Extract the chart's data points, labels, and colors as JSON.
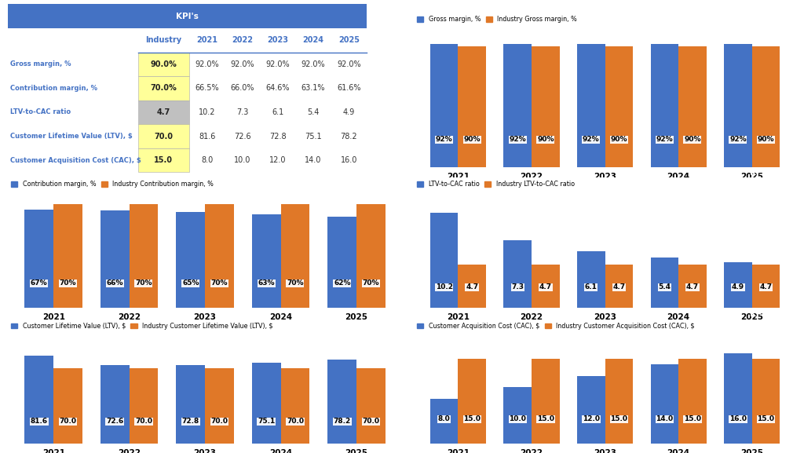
{
  "years": [
    "2021",
    "2022",
    "2023",
    "2024",
    "2025"
  ],
  "blue": "#4472C4",
  "orange": "#E07828",
  "header_bg": "#4472C4",
  "table_rows": [
    {
      "label": "Gross margin, %",
      "industry": "90.0%",
      "values": [
        "92.0%",
        "92.0%",
        "92.0%",
        "92.0%",
        "92.0%"
      ],
      "ibg": "#FFFF99"
    },
    {
      "label": "Contribution margin, %",
      "industry": "70.0%",
      "values": [
        "66.5%",
        "66.0%",
        "64.6%",
        "63.1%",
        "61.6%"
      ],
      "ibg": "#FFFF99"
    },
    {
      "label": "LTV-to-CAC ratio",
      "industry": "4.7",
      "values": [
        "10.2",
        "7.3",
        "6.1",
        "5.4",
        "4.9"
      ],
      "ibg": "#C0C0C0"
    },
    {
      "label": "Customer Lifetime Value (LTV), $",
      "industry": "70.0",
      "values": [
        "81.6",
        "72.6",
        "72.8",
        "75.1",
        "78.2"
      ],
      "ibg": "#FFFF99"
    },
    {
      "label": "Customer Acquisition Cost (CAC), $",
      "industry": "15.0",
      "values": [
        "8.0",
        "10.0",
        "12.0",
        "14.0",
        "16.0"
      ],
      "ibg": "#FFFF99"
    }
  ],
  "gm_blue": [
    92,
    92,
    92,
    92,
    92
  ],
  "gm_orange": [
    90,
    90,
    90,
    90,
    90
  ],
  "gm_lbl_b": [
    "92%",
    "92%",
    "92%",
    "92%",
    "92%"
  ],
  "gm_lbl_o": [
    "90%",
    "90%",
    "90%",
    "90%",
    "90%"
  ],
  "cm_blue": [
    66.5,
    66.0,
    64.6,
    63.1,
    61.6
  ],
  "cm_orange": [
    70,
    70,
    70,
    70,
    70
  ],
  "cm_lbl_b": [
    "67%",
    "66%",
    "65%",
    "63%",
    "62%"
  ],
  "cm_lbl_o": [
    "70%",
    "70%",
    "70%",
    "70%",
    "70%"
  ],
  "lc_blue": [
    10.2,
    7.3,
    6.1,
    5.4,
    4.9
  ],
  "lc_orange": [
    4.7,
    4.7,
    4.7,
    4.7,
    4.7
  ],
  "lc_lbl_b": [
    "10.2",
    "7.3",
    "6.1",
    "5.4",
    "4.9"
  ],
  "lc_lbl_o": [
    "4.7",
    "4.7",
    "4.7",
    "4.7",
    "4.7"
  ],
  "ltv_blue": [
    81.6,
    72.6,
    72.8,
    75.1,
    78.2
  ],
  "ltv_orange": [
    70.0,
    70.0,
    70.0,
    70.0,
    70.0
  ],
  "ltv_lbl_b": [
    "81.6",
    "72.6",
    "72.8",
    "75.1",
    "78.2"
  ],
  "ltv_lbl_o": [
    "70.0",
    "70.0",
    "70.0",
    "70.0",
    "70.0"
  ],
  "cac_blue": [
    8.0,
    10.0,
    12.0,
    14.0,
    16.0
  ],
  "cac_orange": [
    15.0,
    15.0,
    15.0,
    15.0,
    15.0
  ],
  "cac_lbl_b": [
    "8.0",
    "10.0",
    "12.0",
    "14.0",
    "16.0"
  ],
  "cac_lbl_o": [
    "15.0",
    "15.0",
    "15.0",
    "15.0",
    "15.0"
  ]
}
